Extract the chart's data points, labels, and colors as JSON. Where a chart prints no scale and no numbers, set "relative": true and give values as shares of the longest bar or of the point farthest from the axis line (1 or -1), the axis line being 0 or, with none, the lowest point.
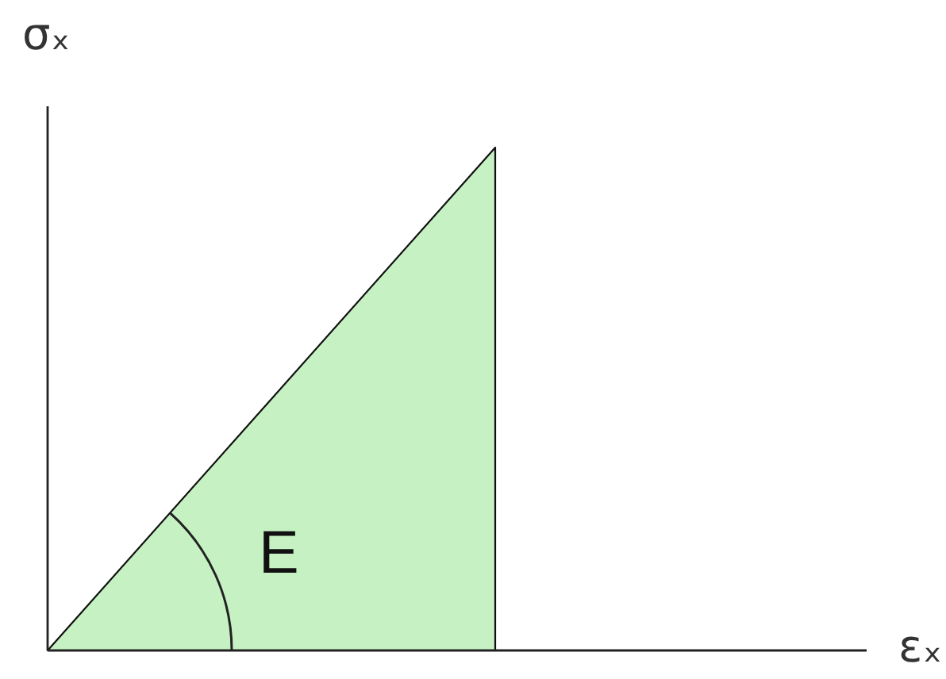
{
  "chart_data": {
    "type": "area",
    "categories": [
      null,
      null
    ],
    "values": [
      0,
      1
    ],
    "color": "#c6f2c3",
    "relative": true,
    "xlabel": "εₓ",
    "ylabel": "σₓ",
    "annotations": [
      "E"
    ]
  }
}
